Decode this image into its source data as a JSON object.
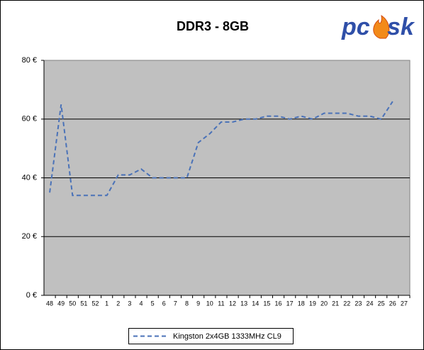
{
  "chart_data": {
    "type": "line",
    "title": "DDR3 - 8GB",
    "logo": {
      "left": "pc",
      "right": "sk"
    },
    "categories": [
      "48",
      "49",
      "50",
      "51",
      "52",
      "1",
      "2",
      "3",
      "4",
      "5",
      "6",
      "7",
      "8",
      "9",
      "10",
      "11",
      "12",
      "13",
      "14",
      "15",
      "16",
      "17",
      "18",
      "19",
      "20",
      "21",
      "22",
      "23",
      "24",
      "25",
      "26",
      "27"
    ],
    "series": [
      {
        "name": "Kingston 2x4GB 1333MHz CL9",
        "color": "#4a72b8",
        "values": [
          35,
          65,
          34,
          34,
          34,
          34,
          41,
          41,
          43,
          40,
          40,
          40,
          40,
          52,
          55,
          59,
          59,
          60,
          60,
          61,
          61,
          60,
          61,
          60,
          62,
          62,
          62,
          61,
          61,
          60,
          66,
          null
        ]
      }
    ],
    "ylim": [
      0,
      80
    ],
    "yticks": [
      {
        "value": 0,
        "label": "0 €"
      },
      {
        "value": 20,
        "label": "20 €"
      },
      {
        "value": 40,
        "label": "40 €"
      },
      {
        "value": 60,
        "label": "60 €"
      },
      {
        "value": 80,
        "label": "80 €"
      }
    ],
    "grid": true,
    "legend": "bottom"
  }
}
